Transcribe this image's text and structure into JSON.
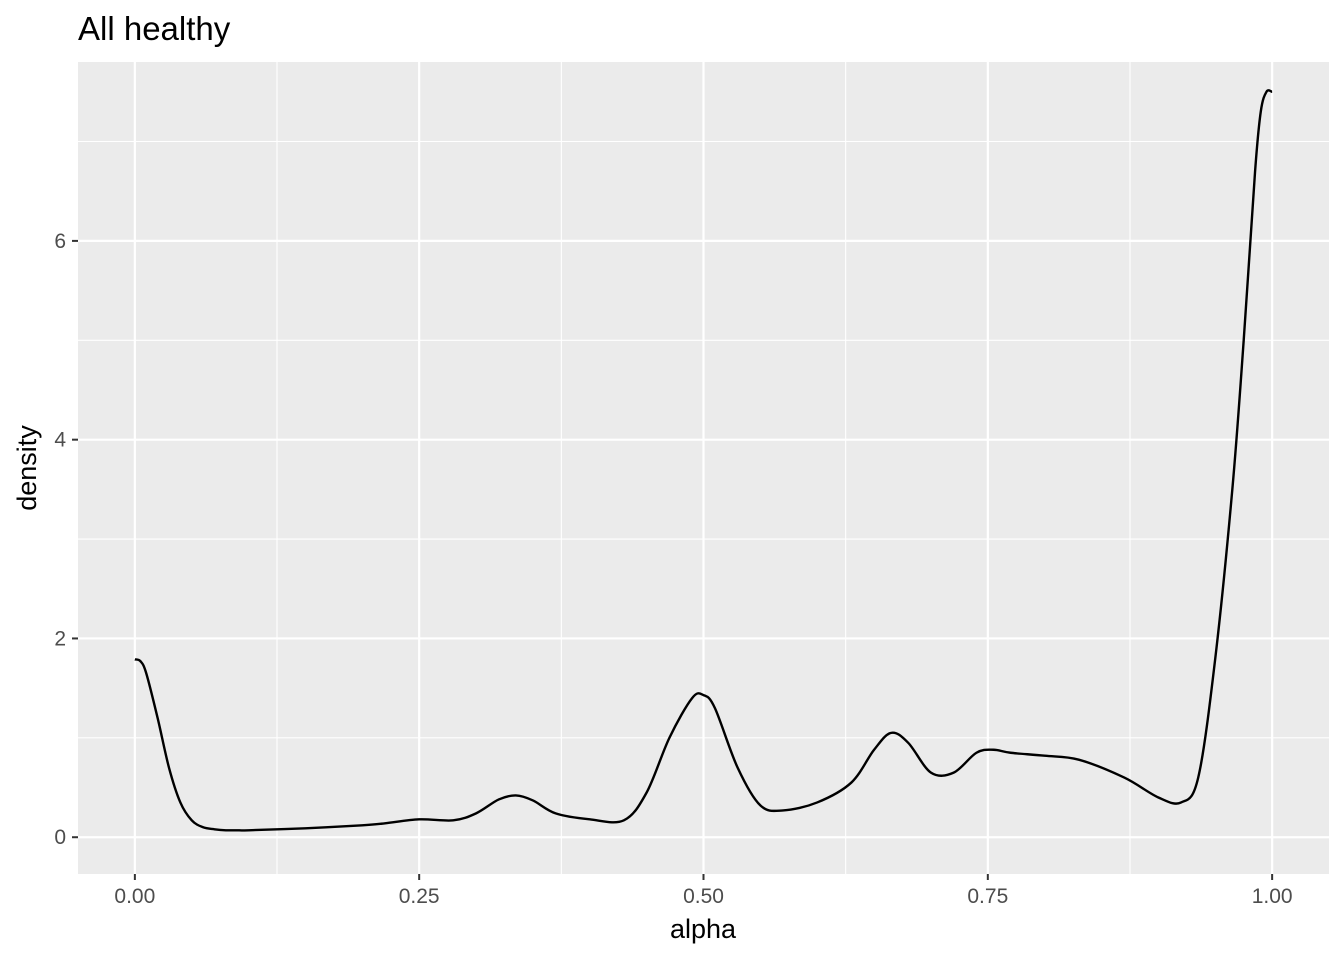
{
  "chart_data": {
    "type": "line",
    "title": "All healthy",
    "xlabel": "alpha",
    "ylabel": "density",
    "xlim": [
      -0.05,
      1.05
    ],
    "ylim": [
      -0.37,
      7.8
    ],
    "x_ticks": [
      0.0,
      0.25,
      0.5,
      0.75,
      1.0
    ],
    "x_tick_labels": [
      "0.00",
      "0.25",
      "0.50",
      "0.75",
      "1.00"
    ],
    "y_ticks": [
      0,
      2,
      4,
      6
    ],
    "y_tick_labels": [
      "0",
      "2",
      "4",
      "6"
    ],
    "grid": true,
    "legend": "none",
    "colors": {
      "panel": "#ebebeb",
      "grid": "#ffffff",
      "line": "#000000",
      "tick": "#333333"
    },
    "series": [
      {
        "x": [
          0.0,
          0.005,
          0.01,
          0.02,
          0.03,
          0.04,
          0.05,
          0.06,
          0.07,
          0.08,
          0.09,
          0.1,
          0.15,
          0.2,
          0.22,
          0.25,
          0.28,
          0.3,
          0.32,
          0.335,
          0.35,
          0.37,
          0.4,
          0.43,
          0.45,
          0.47,
          0.49,
          0.5,
          0.51,
          0.53,
          0.55,
          0.57,
          0.6,
          0.63,
          0.65,
          0.665,
          0.68,
          0.7,
          0.72,
          0.74,
          0.755,
          0.77,
          0.8,
          0.83,
          0.87,
          0.9,
          0.92,
          0.935,
          0.95,
          0.965,
          0.975,
          0.985,
          0.99,
          0.995,
          1.0
        ],
        "y": [
          1.79,
          1.77,
          1.65,
          1.2,
          0.7,
          0.35,
          0.17,
          0.1,
          0.08,
          0.07,
          0.07,
          0.07,
          0.09,
          0.12,
          0.14,
          0.18,
          0.17,
          0.24,
          0.38,
          0.42,
          0.37,
          0.24,
          0.18,
          0.17,
          0.45,
          1.0,
          1.4,
          1.43,
          1.3,
          0.7,
          0.32,
          0.27,
          0.35,
          0.55,
          0.88,
          1.05,
          0.95,
          0.65,
          0.65,
          0.85,
          0.88,
          0.85,
          0.82,
          0.78,
          0.6,
          0.4,
          0.35,
          0.6,
          1.8,
          3.5,
          5.0,
          6.7,
          7.3,
          7.5,
          7.5
        ]
      }
    ]
  }
}
